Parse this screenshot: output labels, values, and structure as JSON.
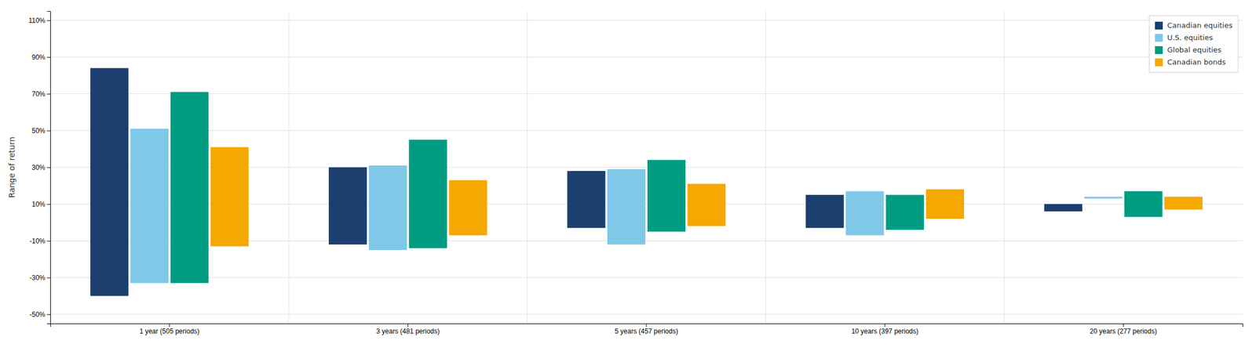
{
  "chart_data": {
    "type": "range_bar",
    "categories": [
      "1 year (505 periods)",
      "3 years (481 periods)",
      "5 years (457 periods)",
      "10 years (397 periods)",
      "20 years (277 periods)"
    ],
    "series": [
      {
        "name": "Canadian equities",
        "color": "#1b3f6e",
        "high": [
          84,
          30,
          28,
          15,
          10
        ],
        "low": [
          -40,
          -12,
          -3,
          -3,
          6
        ]
      },
      {
        "name": "U.S. equities",
        "color": "#7fc8e8",
        "high": [
          51,
          31,
          29,
          17,
          14
        ],
        "low": [
          -33,
          -15,
          -12,
          -7,
          13
        ]
      },
      {
        "name": "Global equities",
        "color": "#009c82",
        "high": [
          71,
          45,
          34,
          15,
          17
        ],
        "low": [
          -33,
          -14,
          -5,
          -4,
          3
        ]
      },
      {
        "name": "Canadian bonds",
        "color": "#f5a800",
        "high": [
          41,
          23,
          21,
          18,
          14
        ],
        "low": [
          -13,
          -7,
          -2,
          2,
          7
        ]
      }
    ],
    "ylabel": "Range of return",
    "ylim": [
      -55,
      115
    ],
    "yticks": [
      {
        "value": -50,
        "label": "-50%"
      },
      {
        "value": -30,
        "label": "-30%"
      },
      {
        "value": -10,
        "label": "-10%"
      },
      {
        "value": 10,
        "label": "10%"
      },
      {
        "value": 30,
        "label": "30%"
      },
      {
        "value": 50,
        "label": "50%"
      },
      {
        "value": 70,
        "label": "70%"
      },
      {
        "value": 90,
        "label": "90%"
      },
      {
        "value": 110,
        "label": "110%"
      }
    ],
    "grid": true,
    "legend": "upper right"
  }
}
